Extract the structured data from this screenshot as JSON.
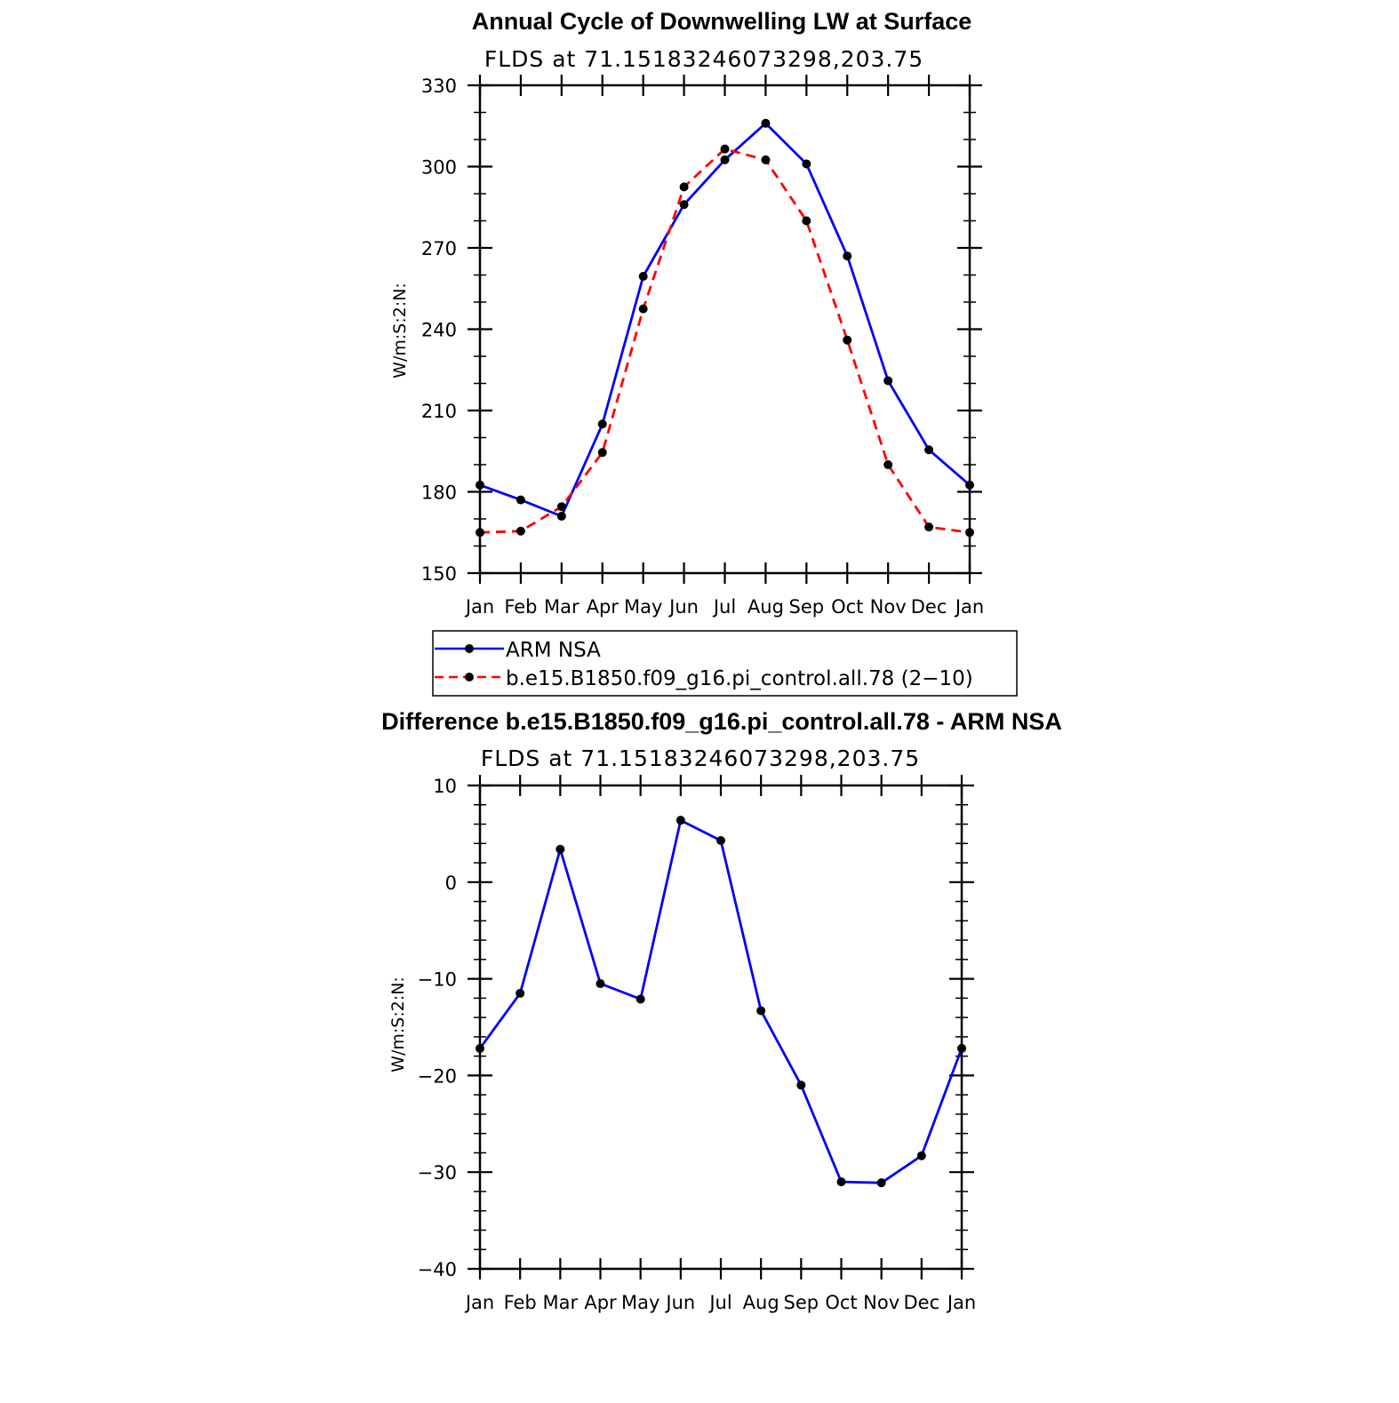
{
  "chart_data": [
    {
      "type": "line",
      "title": "Annual Cycle of Downwelling LW at Surface",
      "subtitle": "FLDS at 71.15183246073298,203.75",
      "ylabel": "W/m:S:2:N:",
      "xlabel": "",
      "categories": [
        "Jan",
        "Feb",
        "Mar",
        "Apr",
        "May",
        "Jun",
        "Jul",
        "Aug",
        "Sep",
        "Oct",
        "Nov",
        "Dec",
        "Jan"
      ],
      "ylim": [
        150,
        330
      ],
      "yticks": [
        150,
        180,
        210,
        240,
        270,
        300,
        330
      ],
      "series": [
        {
          "name": "ARM NSA",
          "color": "#0000ff",
          "dash": "solid",
          "values": [
            182.5,
            177,
            171,
            205,
            259.5,
            286,
            302.5,
            316,
            301,
            267,
            221,
            195.5,
            182.5
          ]
        },
        {
          "name": "b.e15.B1850.f09_g16.pi_control.all.78 (2−10)",
          "color": "#ff0000",
          "dash": "dashed",
          "values": [
            165,
            165.5,
            174.5,
            194.5,
            247.5,
            292.5,
            306.5,
            302.5,
            280,
            236,
            190,
            167,
            165
          ]
        }
      ],
      "legend_position": "below"
    },
    {
      "type": "line",
      "title": "Difference b.e15.B1850.f09_g16.pi_control.all.78 - ARM NSA",
      "subtitle": "FLDS at 71.15183246073298,203.75",
      "ylabel": "W/m:S:2:N:",
      "xlabel": "",
      "categories": [
        "Jan",
        "Feb",
        "Mar",
        "Apr",
        "May",
        "Jun",
        "Jul",
        "Aug",
        "Sep",
        "Oct",
        "Nov",
        "Dec",
        "Jan"
      ],
      "ylim": [
        -40,
        10
      ],
      "yticks": [
        -40,
        -30,
        -20,
        -10,
        0,
        10
      ],
      "ytick_labels": [
        "−40",
        "−30",
        "−20",
        "−10",
        "0",
        "10"
      ],
      "series": [
        {
          "name": "Difference",
          "color": "#0000ff",
          "dash": "solid",
          "values": [
            -17.2,
            -11.5,
            3.4,
            -10.5,
            -12.1,
            6.4,
            4.3,
            -13.3,
            -21,
            -31,
            -31.1,
            -28.3,
            -17.2
          ]
        }
      ]
    }
  ]
}
